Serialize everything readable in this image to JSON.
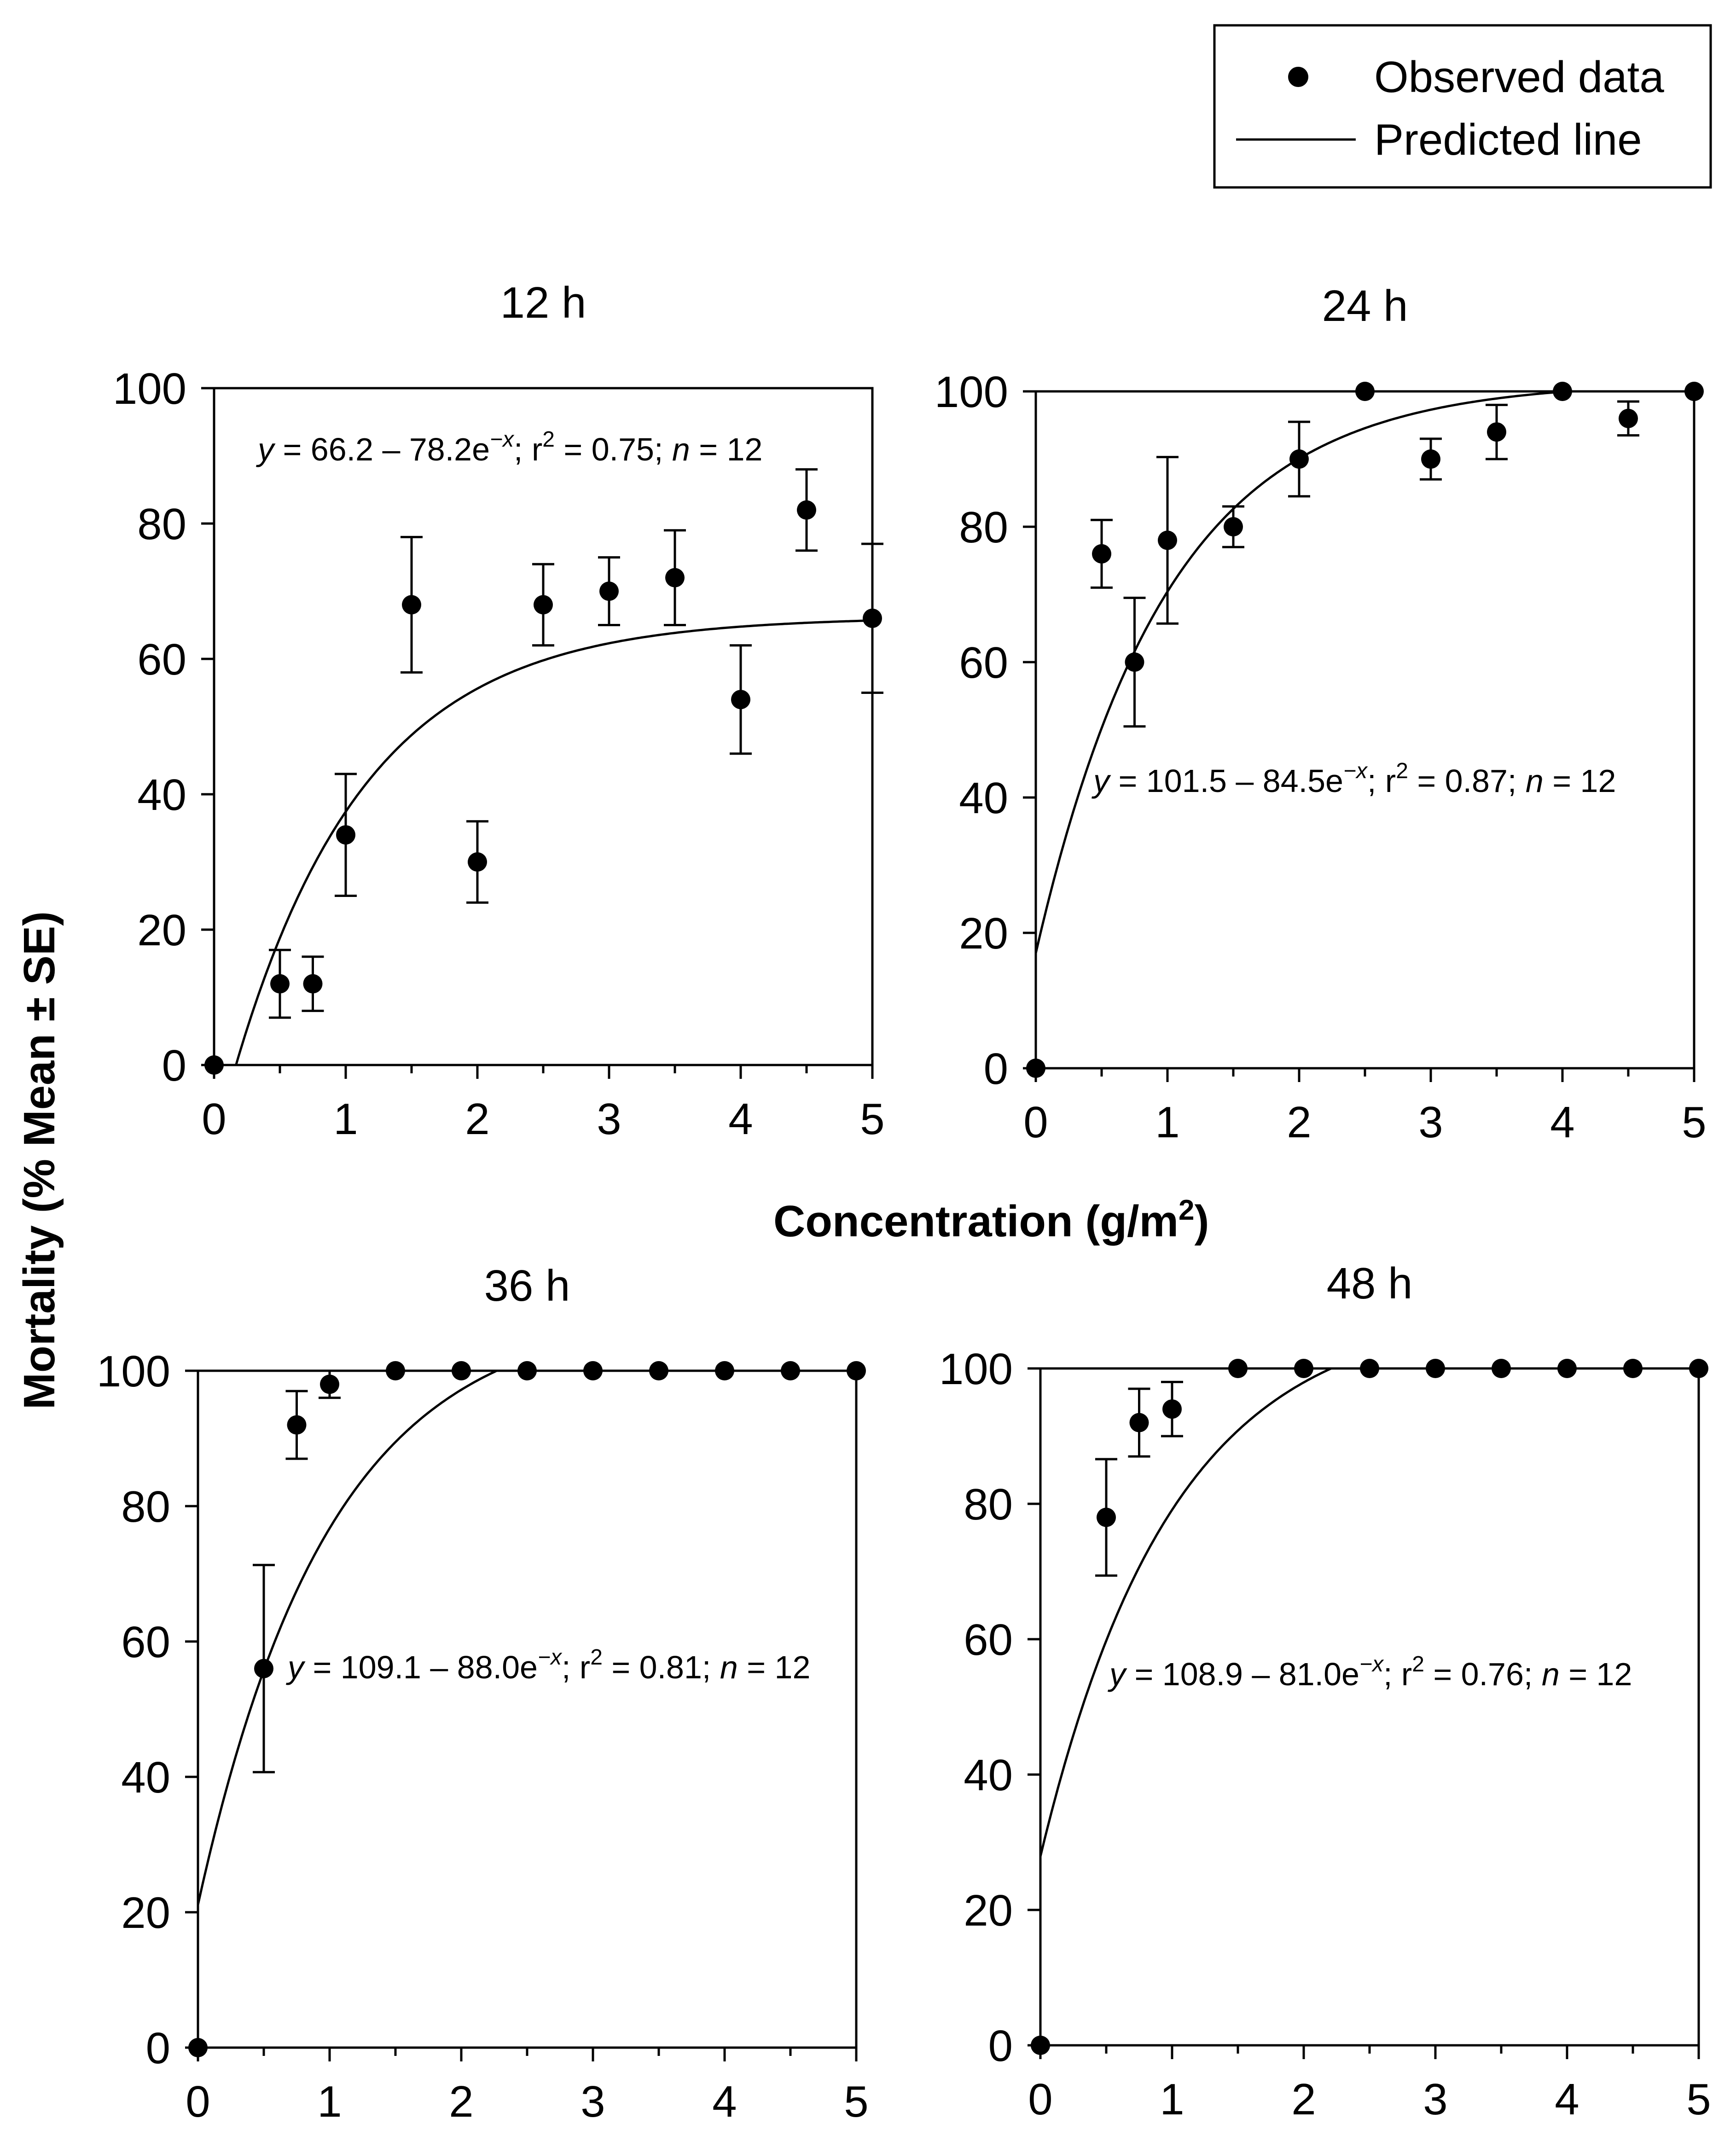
{
  "figure": {
    "xlabel": "Concentration (g/m",
    "xlabel_sup": "2",
    "xlabel_close": ")",
    "ylabel": "Mortality (% Mean ±  SE)"
  },
  "legend": {
    "observed_label": "Observed data",
    "predicted_label": "Predicted line"
  },
  "chart_data": [
    {
      "type": "scatter",
      "title": "12 h",
      "xlabel": "Concentration (g/m2)",
      "ylabel": "Mortality (% Mean ± SE)",
      "xlim": [
        0,
        5
      ],
      "ylim": [
        0,
        100
      ],
      "xticks": [
        0,
        1,
        2,
        3,
        4,
        5
      ],
      "yticks": [
        0,
        20,
        40,
        60,
        80,
        100
      ],
      "series": [
        {
          "name": "Observed data",
          "x": [
            0,
            0.5,
            0.75,
            1,
            1.5,
            2,
            2.5,
            3,
            3.5,
            4,
            4.5,
            5
          ],
          "y": [
            0,
            12,
            12,
            34,
            68,
            30,
            68,
            70,
            72,
            54,
            82,
            66
          ],
          "se": [
            0,
            5,
            4,
            9,
            10,
            6,
            6,
            5,
            7,
            8,
            6,
            11
          ]
        },
        {
          "name": "Predicted line",
          "a": 66.2,
          "b": 78.2
        }
      ],
      "equation": {
        "y": "y",
        "body": " = 66.2 – 78.2e",
        "exp": "−x",
        "r": "; r",
        "r_exp": "2",
        "r_val": " = 0.75; ",
        "n": "n",
        "n_val": " = 12"
      }
    },
    {
      "type": "scatter",
      "title": "24 h",
      "xlabel": "Concentration (g/m2)",
      "ylabel": "Mortality (% Mean ± SE)",
      "xlim": [
        0,
        5
      ],
      "ylim": [
        0,
        100
      ],
      "xticks": [
        0,
        1,
        2,
        3,
        4,
        5
      ],
      "yticks": [
        0,
        20,
        40,
        60,
        80,
        100
      ],
      "series": [
        {
          "name": "Observed data",
          "x": [
            0,
            0.5,
            0.75,
            1,
            1.5,
            2,
            2.5,
            3,
            3.5,
            4,
            4.5,
            5
          ],
          "y": [
            0,
            76,
            60,
            78,
            80,
            90,
            100,
            90,
            94,
            100,
            96,
            100
          ],
          "se": [
            0,
            5,
            9.5,
            12.3,
            3,
            5.5,
            0,
            3,
            4,
            0,
            2.5,
            0
          ]
        },
        {
          "name": "Predicted line",
          "a": 101.5,
          "b": 84.5
        }
      ],
      "equation": {
        "y": "y",
        "body": " = 101.5 – 84.5e",
        "exp": "−x",
        "r": "; r",
        "r_exp": "2",
        "r_val": " = 0.87; ",
        "n": "n",
        "n_val": " = 12"
      }
    },
    {
      "type": "scatter",
      "title": "36 h",
      "xlabel": "Concentration (g/m2)",
      "ylabel": "Mortality (% Mean ± SE)",
      "xlim": [
        0,
        5
      ],
      "ylim": [
        0,
        100
      ],
      "xticks": [
        0,
        1,
        2,
        3,
        4,
        5
      ],
      "yticks": [
        0,
        20,
        40,
        60,
        80,
        100
      ],
      "series": [
        {
          "name": "Observed data",
          "x": [
            0,
            0.5,
            0.75,
            1,
            1.5,
            2,
            2.5,
            3,
            3.5,
            4,
            4.5,
            5
          ],
          "y": [
            0,
            56,
            92,
            98,
            100,
            100,
            100,
            100,
            100,
            100,
            100,
            100
          ],
          "se": [
            0,
            15.3,
            5,
            2,
            0,
            0,
            0,
            0,
            0,
            0,
            0,
            0
          ]
        },
        {
          "name": "Predicted line",
          "a": 109.1,
          "b": 88.0
        }
      ],
      "equation": {
        "y": "y",
        "body": " = 109.1 – 88.0e",
        "exp": "−x",
        "r": "; r",
        "r_exp": "2",
        "r_val": " = 0.81; ",
        "n": "n",
        "n_val": " = 12"
      }
    },
    {
      "type": "scatter",
      "title": "48 h",
      "xlabel": "Concentration (g/m2)",
      "ylabel": "Mortality (% Mean ± SE)",
      "xlim": [
        0,
        5
      ],
      "ylim": [
        0,
        100
      ],
      "xticks": [
        0,
        1,
        2,
        3,
        4,
        5
      ],
      "yticks": [
        0,
        20,
        40,
        60,
        80,
        100
      ],
      "series": [
        {
          "name": "Observed data",
          "x": [
            0,
            0.5,
            0.75,
            1,
            1.5,
            2,
            2.5,
            3,
            3.5,
            4,
            4.5,
            5
          ],
          "y": [
            0,
            78,
            92,
            94,
            100,
            100,
            100,
            100,
            100,
            100,
            100,
            100
          ],
          "se": [
            0,
            8.6,
            5,
            4,
            0,
            0,
            0,
            0,
            0,
            0,
            0,
            0
          ]
        },
        {
          "name": "Predicted line",
          "a": 108.9,
          "b": 81.0
        }
      ],
      "equation": {
        "y": "y",
        "body": " = 108.9 – 81.0e",
        "exp": "−x",
        "r": "; r",
        "r_exp": "2",
        "r_val": " = 0.76; ",
        "n": "n",
        "n_val": " = 12"
      }
    }
  ]
}
